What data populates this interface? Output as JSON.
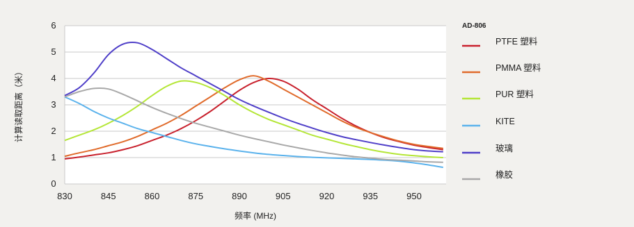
{
  "chart_data": {
    "type": "line",
    "title": "",
    "xlabel": "频率 (MHz)",
    "ylabel": "计算读取距离（米）",
    "xlim": [
      830,
      961
    ],
    "ylim": [
      0,
      6
    ],
    "xticks": [
      830,
      845,
      860,
      875,
      890,
      905,
      920,
      935,
      950
    ],
    "yticks": [
      0,
      1,
      2,
      3,
      4,
      5,
      6
    ],
    "grid": "horizontal",
    "legend": {
      "title": "AD-806",
      "position": "right"
    },
    "x": [
      830,
      835,
      840,
      845,
      850,
      855,
      860,
      865,
      870,
      875,
      880,
      885,
      890,
      895,
      900,
      905,
      910,
      915,
      920,
      925,
      930,
      935,
      940,
      945,
      950,
      955,
      960
    ],
    "series": [
      {
        "name": "PTFE 塑料",
        "color": "#c8202c",
        "values": [
          0.95,
          1.02,
          1.1,
          1.18,
          1.3,
          1.45,
          1.65,
          1.85,
          2.1,
          2.4,
          2.75,
          3.15,
          3.55,
          3.85,
          4.0,
          3.9,
          3.6,
          3.2,
          2.85,
          2.5,
          2.2,
          1.95,
          1.75,
          1.6,
          1.47,
          1.38,
          1.3
        ]
      },
      {
        "name": "PMMA 塑料",
        "color": "#e06a2a",
        "values": [
          1.05,
          1.18,
          1.3,
          1.45,
          1.6,
          1.8,
          2.05,
          2.3,
          2.6,
          2.95,
          3.3,
          3.65,
          3.95,
          4.1,
          3.9,
          3.6,
          3.3,
          3.0,
          2.7,
          2.4,
          2.15,
          1.95,
          1.78,
          1.62,
          1.5,
          1.42,
          1.35
        ]
      },
      {
        "name": "PUR 塑料",
        "color": "#b4e636",
        "values": [
          1.65,
          1.85,
          2.05,
          2.3,
          2.6,
          2.95,
          3.35,
          3.7,
          3.9,
          3.85,
          3.65,
          3.35,
          3.0,
          2.7,
          2.45,
          2.25,
          2.05,
          1.85,
          1.7,
          1.55,
          1.42,
          1.3,
          1.2,
          1.12,
          1.07,
          1.03,
          1.0
        ]
      },
      {
        "name": "KITE",
        "color": "#5ab2ec",
        "values": [
          3.3,
          3.05,
          2.75,
          2.5,
          2.3,
          2.1,
          1.95,
          1.8,
          1.65,
          1.52,
          1.42,
          1.33,
          1.25,
          1.18,
          1.12,
          1.08,
          1.04,
          1.01,
          0.99,
          0.97,
          0.95,
          0.93,
          0.9,
          0.86,
          0.8,
          0.72,
          0.63
        ]
      },
      {
        "name": "玻璃",
        "color": "#4e3ec8",
        "values": [
          3.35,
          3.65,
          4.2,
          4.9,
          5.3,
          5.35,
          5.1,
          4.75,
          4.4,
          4.1,
          3.8,
          3.5,
          3.2,
          2.95,
          2.72,
          2.5,
          2.3,
          2.12,
          1.95,
          1.8,
          1.68,
          1.57,
          1.47,
          1.38,
          1.3,
          1.25,
          1.22
        ]
      },
      {
        "name": "橡胶",
        "color": "#a8a8a8",
        "values": [
          3.3,
          3.5,
          3.62,
          3.6,
          3.4,
          3.15,
          2.9,
          2.68,
          2.48,
          2.3,
          2.15,
          2.0,
          1.85,
          1.72,
          1.6,
          1.48,
          1.37,
          1.27,
          1.18,
          1.1,
          1.03,
          0.98,
          0.93,
          0.9,
          0.87,
          0.84,
          0.82
        ]
      }
    ]
  }
}
